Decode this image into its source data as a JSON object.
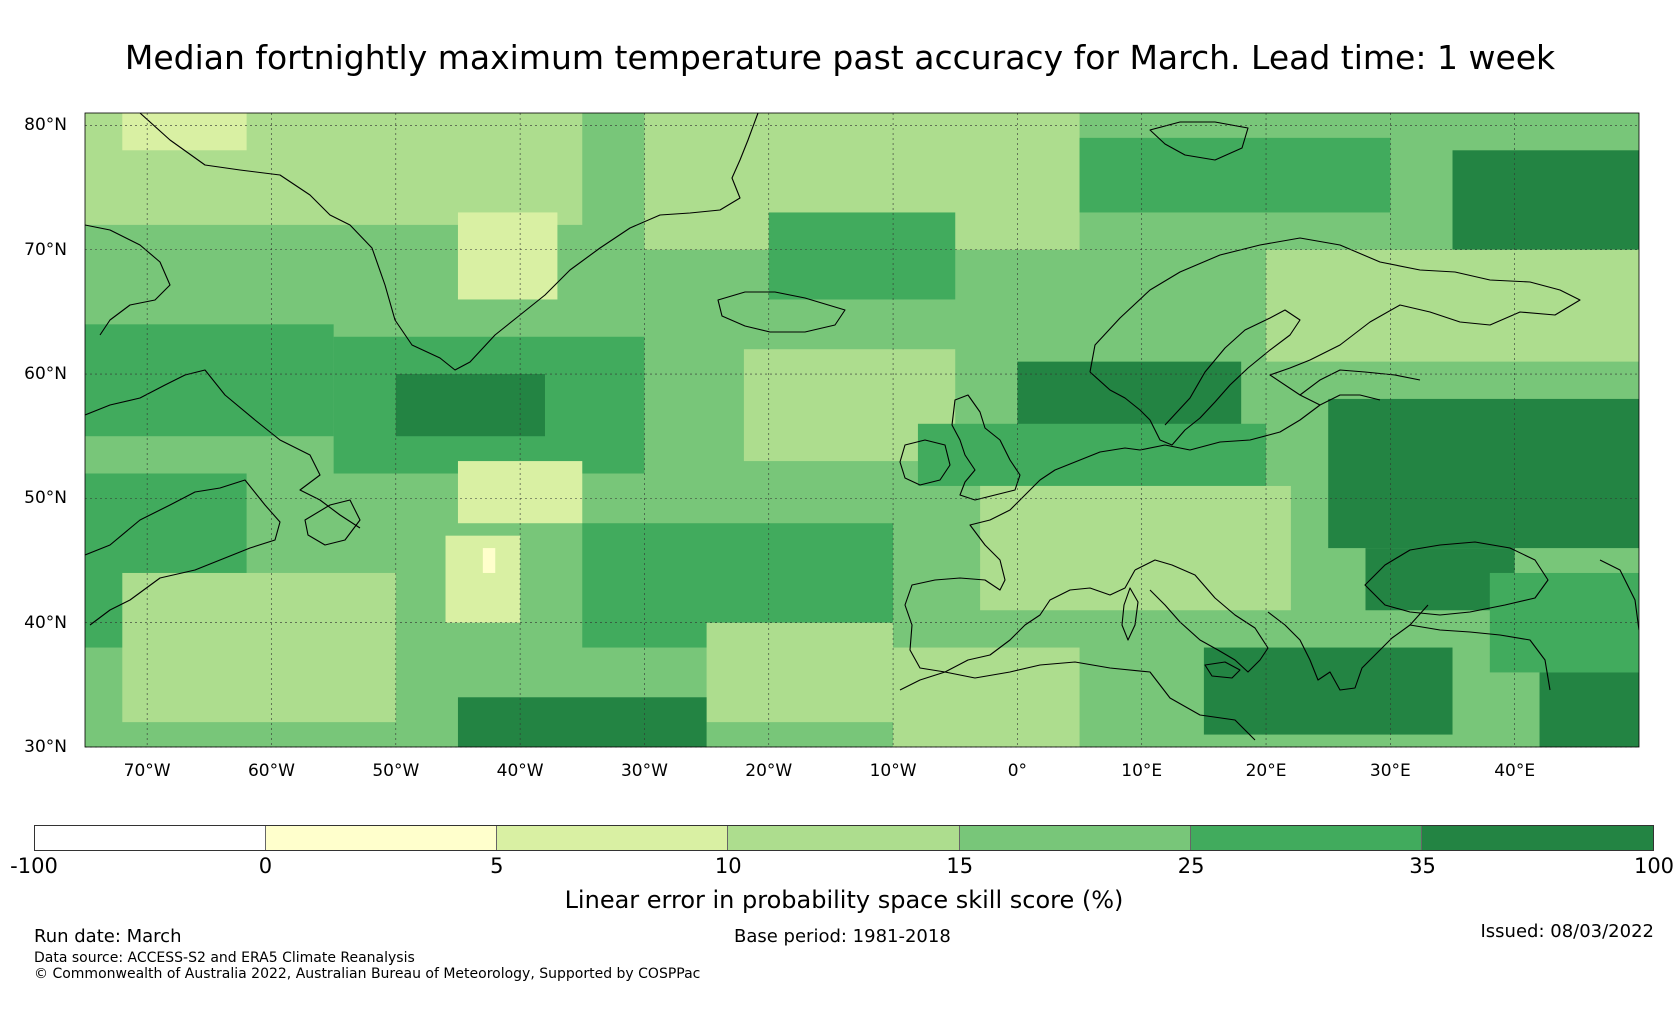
{
  "title": "Median fortnightly maximum temperature past accuracy for March. Lead time: 1 week",
  "map": {
    "lon_range": [
      -75,
      50
    ],
    "lat_range": [
      30,
      81
    ],
    "lat_labels": [
      {
        "value": 80,
        "text": "80°N"
      },
      {
        "value": 70,
        "text": "70°N"
      },
      {
        "value": 60,
        "text": "60°N"
      },
      {
        "value": 50,
        "text": "50°N"
      },
      {
        "value": 40,
        "text": "40°N"
      },
      {
        "value": 30,
        "text": "30°N"
      }
    ],
    "lon_labels": [
      {
        "value": -70,
        "text": "70°W"
      },
      {
        "value": -60,
        "text": "60°W"
      },
      {
        "value": -50,
        "text": "50°W"
      },
      {
        "value": -40,
        "text": "40°W"
      },
      {
        "value": -30,
        "text": "30°W"
      },
      {
        "value": -20,
        "text": "20°W"
      },
      {
        "value": -10,
        "text": "10°W"
      },
      {
        "value": 0,
        "text": "0°"
      },
      {
        "value": 10,
        "text": "10°E"
      },
      {
        "value": 20,
        "text": "20°E"
      },
      {
        "value": 30,
        "text": "30°E"
      },
      {
        "value": 40,
        "text": "40°E"
      }
    ],
    "skill_regions": [
      {
        "class": 4,
        "lon": [
          -75,
          50
        ],
        "lat": [
          30,
          81
        ]
      },
      {
        "class": 3,
        "lon": [
          -75,
          -35
        ],
        "lat": [
          72,
          81
        ]
      },
      {
        "class": 2,
        "lon": [
          -72,
          -62
        ],
        "lat": [
          78,
          81
        ]
      },
      {
        "class": 3,
        "lon": [
          -30,
          5
        ],
        "lat": [
          70,
          81
        ]
      },
      {
        "class": 2,
        "lon": [
          -45,
          -37
        ],
        "lat": [
          66,
          73
        ]
      },
      {
        "class": 5,
        "lon": [
          -20,
          -5
        ],
        "lat": [
          66,
          73
        ]
      },
      {
        "class": 5,
        "lon": [
          5,
          30
        ],
        "lat": [
          73,
          79
        ]
      },
      {
        "class": 6,
        "lon": [
          35,
          50
        ],
        "lat": [
          70,
          78
        ]
      },
      {
        "class": 3,
        "lon": [
          20,
          50
        ],
        "lat": [
          61,
          70
        ]
      },
      {
        "class": 3,
        "lon": [
          -22,
          -5
        ],
        "lat": [
          53,
          62
        ]
      },
      {
        "class": 5,
        "lon": [
          -55,
          -30
        ],
        "lat": [
          52,
          63
        ]
      },
      {
        "class": 6,
        "lon": [
          -50,
          -38
        ],
        "lat": [
          55,
          60
        ]
      },
      {
        "class": 5,
        "lon": [
          -75,
          -55
        ],
        "lat": [
          55,
          64
        ]
      },
      {
        "class": 6,
        "lon": [
          0,
          18
        ],
        "lat": [
          55,
          61
        ]
      },
      {
        "class": 5,
        "lon": [
          -8,
          20
        ],
        "lat": [
          51,
          56
        ]
      },
      {
        "class": 6,
        "lon": [
          25,
          50
        ],
        "lat": [
          46,
          58
        ]
      },
      {
        "class": 3,
        "lon": [
          -3,
          22
        ],
        "lat": [
          41,
          51
        ]
      },
      {
        "class": 5,
        "lon": [
          -75,
          -62
        ],
        "lat": [
          38,
          52
        ]
      },
      {
        "class": 3,
        "lon": [
          -72,
          -50
        ],
        "lat": [
          32,
          44
        ]
      },
      {
        "class": 2,
        "lon": [
          -46,
          -40
        ],
        "lat": [
          40,
          47
        ]
      },
      {
        "class": 1,
        "lon": [
          -43,
          -42
        ],
        "lat": [
          44,
          46
        ]
      },
      {
        "class": 5,
        "lon": [
          -35,
          -10
        ],
        "lat": [
          38,
          48
        ]
      },
      {
        "class": 3,
        "lon": [
          -25,
          -10
        ],
        "lat": [
          32,
          40
        ]
      },
      {
        "class": 6,
        "lon": [
          -45,
          -25
        ],
        "lat": [
          30,
          34
        ]
      },
      {
        "class": 3,
        "lon": [
          -10,
          5
        ],
        "lat": [
          30,
          38
        ]
      },
      {
        "class": 6,
        "lon": [
          15,
          35
        ],
        "lat": [
          31,
          38
        ]
      },
      {
        "class": 6,
        "lon": [
          28,
          40
        ],
        "lat": [
          41,
          46
        ]
      },
      {
        "class": 5,
        "lon": [
          38,
          50
        ],
        "lat": [
          36,
          44
        ]
      },
      {
        "class": 6,
        "lon": [
          42,
          50
        ],
        "lat": [
          30,
          36
        ]
      },
      {
        "class": 2,
        "lon": [
          -45,
          -35
        ],
        "lat": [
          48,
          53
        ]
      }
    ]
  },
  "colorbar": {
    "levels": [
      {
        "label": "-100",
        "color": "#ffffff"
      },
      {
        "label": "0",
        "color": "#ffffcc"
      },
      {
        "label": "5",
        "color": "#d9f0a3"
      },
      {
        "label": "10",
        "color": "#addd8e"
      },
      {
        "label": "15",
        "color": "#78c679"
      },
      {
        "label": "25",
        "color": "#41ab5d"
      },
      {
        "label": "35",
        "color": "#238443"
      },
      {
        "label": "100",
        "color": ""
      }
    ],
    "label": "Linear error in probability space skill score (%)"
  },
  "footer": {
    "run_date": "Run date: March",
    "base_period": "Base period: 1981-2018",
    "issued": "Issued: 08/03/2022",
    "data_source": "Data source: ACCESS-S2 and ERA5 Climate Reanalysis",
    "copyright": "© Commonwealth of Australia 2022, Australian Bureau of Meteorology, Supported by COSPPac"
  },
  "coastline_color": "#000000",
  "grid_color": "#333333"
}
